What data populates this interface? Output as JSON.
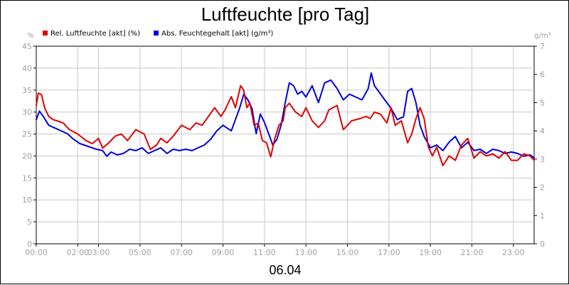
{
  "chart_data": {
    "type": "line",
    "title": "Luftfeuchte [pro Tag]",
    "date_label": "06.04",
    "left_unit": "%",
    "right_unit": "g/m³",
    "ylim_left": [
      0,
      45
    ],
    "ylim_right": [
      0,
      7
    ],
    "y_ticks_left": [
      0,
      5,
      10,
      15,
      20,
      25,
      30,
      35,
      40,
      45
    ],
    "y_ticks_right": [
      0,
      1,
      2,
      3,
      4,
      5,
      6,
      7
    ],
    "x_range": [
      0,
      24
    ],
    "x_ticks": [
      {
        "label": "00:00",
        "x": 0
      },
      {
        "label": "02:00",
        "x": 2
      },
      {
        "label": "03:00",
        "x": 3
      },
      {
        "label": "05:00",
        "x": 5
      },
      {
        "label": "07:00",
        "x": 7
      },
      {
        "label": "09:00",
        "x": 9
      },
      {
        "label": "11:00",
        "x": 11
      },
      {
        "label": "13:00",
        "x": 13
      },
      {
        "label": "15:00",
        "x": 15
      },
      {
        "label": "17:00",
        "x": 17
      },
      {
        "label": "19:00",
        "x": 19
      },
      {
        "label": "21:00",
        "x": 21
      },
      {
        "label": "23:00",
        "x": 23
      }
    ],
    "grid": true,
    "legend_position": "top-left",
    "series": [
      {
        "name": "Rel. Luftfeuchte [akt] (%)",
        "axis": "left",
        "color": "#e00000",
        "x": [
          0,
          0.1,
          0.25,
          0.4,
          0.6,
          0.8,
          1.0,
          1.3,
          1.6,
          2.0,
          2.4,
          2.7,
          3.0,
          3.2,
          3.5,
          3.8,
          4.1,
          4.4,
          4.8,
          5.2,
          5.5,
          5.8,
          6.0,
          6.3,
          6.6,
          7.0,
          7.4,
          7.7,
          8.0,
          8.3,
          8.6,
          8.9,
          9.1,
          9.4,
          9.6,
          9.85,
          10.0,
          10.15,
          10.3,
          10.5,
          10.7,
          10.9,
          11.1,
          11.3,
          11.5,
          11.7,
          11.9,
          12.0,
          12.2,
          12.5,
          12.8,
          13.0,
          13.3,
          13.6,
          13.9,
          14.1,
          14.5,
          14.8,
          15.2,
          15.6,
          15.9,
          16.1,
          16.3,
          16.6,
          16.9,
          17.1,
          17.3,
          17.6,
          17.9,
          18.1,
          18.3,
          18.5,
          18.7,
          18.9,
          19.1,
          19.3,
          19.6,
          19.9,
          20.2,
          20.5,
          20.8,
          21.1,
          21.4,
          21.7,
          22.0,
          22.3,
          22.6,
          22.9,
          23.2,
          23.5,
          23.8,
          24.0
        ],
        "values": [
          31.5,
          34.3,
          34.0,
          31.0,
          29.0,
          28.3,
          28.0,
          27.5,
          26.0,
          25.0,
          23.5,
          22.8,
          24.0,
          21.8,
          23.0,
          24.5,
          25.0,
          23.5,
          26.0,
          25.0,
          21.5,
          22.5,
          24.0,
          23.0,
          24.5,
          27.0,
          26.0,
          27.5,
          27.0,
          29.0,
          31.0,
          29.0,
          30.5,
          33.5,
          31.0,
          36.0,
          35.0,
          31.0,
          32.0,
          27.0,
          27.5,
          23.5,
          23.0,
          19.8,
          24.0,
          27.0,
          28.0,
          31.0,
          32.0,
          30.0,
          29.0,
          31.0,
          28.0,
          26.5,
          28.0,
          30.5,
          31.5,
          26.0,
          28.0,
          28.5,
          29.0,
          28.5,
          30.0,
          29.5,
          27.5,
          31.0,
          27.0,
          28.0,
          23.0,
          25.0,
          28.5,
          31.0,
          28.5,
          22.0,
          20.0,
          22.0,
          17.8,
          20.0,
          19.0,
          22.5,
          24.0,
          19.5,
          21.0,
          20.0,
          20.5,
          19.5,
          21.0,
          19.0,
          19.0,
          20.5,
          20.0,
          19.0
        ]
      },
      {
        "name": "Abs. Feuchtegehalt [akt] (g/m³)",
        "axis": "right",
        "color": "#0000e0",
        "x": [
          0,
          0.15,
          0.35,
          0.6,
          0.9,
          1.2,
          1.5,
          1.8,
          2.1,
          2.5,
          2.9,
          3.2,
          3.4,
          3.6,
          3.9,
          4.2,
          4.5,
          4.8,
          5.1,
          5.4,
          5.7,
          6.0,
          6.3,
          6.6,
          6.9,
          7.2,
          7.5,
          7.8,
          8.1,
          8.4,
          8.7,
          9.0,
          9.2,
          9.4,
          9.6,
          9.8,
          10.0,
          10.2,
          10.4,
          10.6,
          10.8,
          11.0,
          11.2,
          11.4,
          11.6,
          11.8,
          12.0,
          12.2,
          12.4,
          12.6,
          12.8,
          13.0,
          13.3,
          13.6,
          13.9,
          14.2,
          14.5,
          14.8,
          15.1,
          15.4,
          15.7,
          16.0,
          16.15,
          16.3,
          16.5,
          16.8,
          17.1,
          17.4,
          17.7,
          17.9,
          18.1,
          18.3,
          18.5,
          18.7,
          19.0,
          19.3,
          19.6,
          19.9,
          20.2,
          20.5,
          20.8,
          21.1,
          21.4,
          21.7,
          22.0,
          22.3,
          22.6,
          22.9,
          23.2,
          23.5,
          23.8,
          24.0
        ],
        "values": [
          4.4,
          4.7,
          4.5,
          4.2,
          4.1,
          4.0,
          3.9,
          3.7,
          3.55,
          3.45,
          3.35,
          3.3,
          3.1,
          3.25,
          3.15,
          3.2,
          3.35,
          3.3,
          3.4,
          3.2,
          3.3,
          3.4,
          3.2,
          3.35,
          3.3,
          3.35,
          3.3,
          3.4,
          3.5,
          3.7,
          4.0,
          4.2,
          4.1,
          4.0,
          4.4,
          4.8,
          5.3,
          5.1,
          4.8,
          3.9,
          4.6,
          4.3,
          3.9,
          3.5,
          3.7,
          4.2,
          5.0,
          5.7,
          5.6,
          5.3,
          5.4,
          5.2,
          5.6,
          5.0,
          5.7,
          5.8,
          5.5,
          5.1,
          5.3,
          5.2,
          5.1,
          5.5,
          6.05,
          5.6,
          5.4,
          5.1,
          4.8,
          4.4,
          4.5,
          5.4,
          5.5,
          5.0,
          4.2,
          3.8,
          3.4,
          3.5,
          3.3,
          3.6,
          3.8,
          3.4,
          3.6,
          3.3,
          3.35,
          3.2,
          3.35,
          3.3,
          3.2,
          3.25,
          3.2,
          3.1,
          3.15,
          3.05
        ]
      }
    ]
  }
}
